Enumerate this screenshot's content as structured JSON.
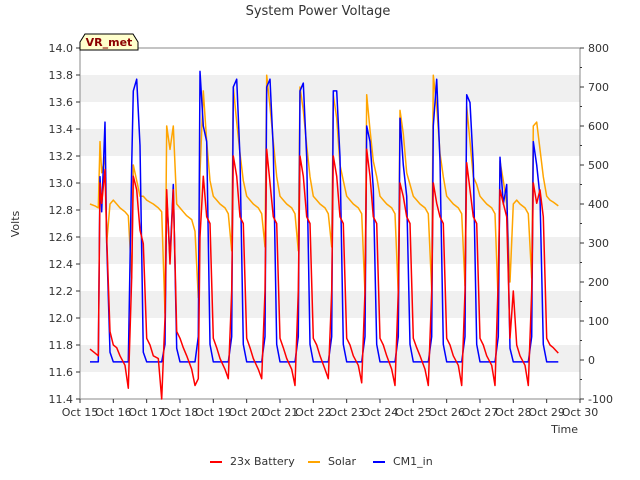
{
  "chart_data": {
    "type": "line",
    "title": "System Power Voltage",
    "xlabel": "Time",
    "ylabel": "Volts",
    "ylim": [
      11.4,
      14.0
    ],
    "y2lim": [
      -100,
      800
    ],
    "ytick_labels": [
      "11.4",
      "11.6",
      "11.8",
      "12.0",
      "12.2",
      "12.4",
      "12.6",
      "12.8",
      "13.0",
      "13.2",
      "13.4",
      "13.6",
      "13.8",
      "14.0"
    ],
    "y2tick_labels": [
      "-100",
      "0",
      "100",
      "200",
      "300",
      "400",
      "500",
      "600",
      "700",
      "800"
    ],
    "xtick_labels": [
      "Oct 15",
      "Oct 16",
      "Oct 17",
      "Oct 18",
      "Oct 19",
      "Oct 20",
      "Oct 21",
      "Oct 22",
      "Oct 23",
      "Oct 24",
      "Oct 25",
      "Oct 26",
      "Oct 27",
      "Oct 28",
      "Oct 29",
      "Oct 30"
    ],
    "xlim_days": [
      0,
      15
    ],
    "badge": "VR_met",
    "grid": "horizontal bands",
    "legend_position": "bottom-center",
    "series": [
      {
        "name": "23x Battery",
        "axis": "left",
        "color": "#ff0000",
        "x": [
          0.3,
          0.45,
          0.55,
          0.6,
          0.65,
          0.75,
          0.8,
          0.9,
          1.0,
          1.1,
          1.2,
          1.35,
          1.45,
          1.55,
          1.6,
          1.7,
          1.8,
          1.9,
          2.0,
          2.1,
          2.2,
          2.35,
          2.45,
          2.55,
          2.6,
          2.7,
          2.8,
          2.9,
          3.0,
          3.1,
          3.2,
          3.35,
          3.45,
          3.55,
          3.6,
          3.7,
          3.8,
          3.9,
          4.0,
          4.1,
          4.2,
          4.35,
          4.45,
          4.55,
          4.6,
          4.7,
          4.8,
          4.9,
          5.0,
          5.1,
          5.2,
          5.35,
          5.45,
          5.55,
          5.6,
          5.7,
          5.8,
          5.9,
          6.0,
          6.1,
          6.2,
          6.35,
          6.45,
          6.55,
          6.6,
          6.7,
          6.8,
          6.9,
          7.0,
          7.1,
          7.2,
          7.35,
          7.45,
          7.55,
          7.6,
          7.7,
          7.8,
          7.9,
          8.0,
          8.1,
          8.2,
          8.35,
          8.45,
          8.55,
          8.6,
          8.7,
          8.8,
          8.9,
          9.0,
          9.1,
          9.2,
          9.35,
          9.45,
          9.55,
          9.6,
          9.7,
          9.8,
          9.9,
          10.0,
          10.1,
          10.2,
          10.35,
          10.45,
          10.55,
          10.6,
          10.7,
          10.8,
          10.9,
          11.0,
          11.1,
          11.2,
          11.35,
          11.45,
          11.55,
          11.6,
          11.7,
          11.8,
          11.9,
          12.0,
          12.1,
          12.2,
          12.35,
          12.45,
          12.55,
          12.6,
          12.7,
          12.8,
          12.9,
          13.0,
          13.1,
          13.2,
          13.35,
          13.45,
          13.55,
          13.6,
          13.7,
          13.8,
          13.9,
          14.0,
          14.1,
          14.2,
          14.35
        ],
        "values": [
          11.77,
          11.74,
          11.72,
          13.0,
          12.85,
          13.1,
          12.6,
          11.9,
          11.8,
          11.78,
          11.72,
          11.65,
          11.48,
          12.3,
          13.05,
          12.95,
          12.65,
          12.55,
          11.85,
          11.8,
          11.72,
          11.7,
          11.4,
          12.0,
          12.95,
          12.4,
          12.95,
          11.9,
          11.85,
          11.78,
          11.72,
          11.62,
          11.5,
          11.55,
          12.6,
          13.05,
          12.75,
          12.7,
          11.85,
          11.78,
          11.7,
          11.62,
          11.55,
          12.2,
          13.2,
          13.05,
          12.75,
          12.7,
          11.85,
          11.78,
          11.7,
          11.62,
          11.55,
          12.2,
          13.25,
          13.0,
          12.75,
          12.7,
          11.85,
          11.78,
          11.7,
          11.62,
          11.5,
          12.2,
          13.2,
          13.05,
          12.75,
          12.7,
          11.85,
          11.8,
          11.72,
          11.62,
          11.55,
          12.2,
          13.2,
          13.05,
          12.75,
          12.7,
          11.85,
          11.8,
          11.72,
          11.65,
          11.52,
          12.2,
          13.25,
          13.05,
          12.75,
          12.7,
          11.85,
          11.8,
          11.72,
          11.62,
          11.5,
          12.2,
          13.0,
          12.9,
          12.75,
          12.7,
          11.85,
          11.78,
          11.72,
          11.62,
          11.5,
          12.2,
          13.0,
          12.85,
          12.75,
          12.7,
          11.85,
          11.8,
          11.72,
          11.65,
          11.5,
          12.2,
          13.15,
          12.95,
          12.75,
          12.7,
          11.85,
          11.8,
          11.72,
          11.65,
          11.5,
          12.3,
          12.95,
          12.85,
          12.75,
          11.85,
          12.2,
          11.8,
          11.72,
          11.65,
          11.5,
          12.2,
          13.0,
          12.85,
          12.95,
          12.75,
          11.85,
          11.8,
          11.78,
          11.74
        ]
      },
      {
        "name": "Solar",
        "axis": "right",
        "color": "#ffa500",
        "x": [
          0.3,
          0.45,
          0.55,
          0.6,
          0.65,
          0.75,
          0.8,
          0.9,
          1.0,
          1.1,
          1.2,
          1.35,
          1.45,
          1.55,
          1.6,
          1.7,
          1.8,
          1.9,
          2.0,
          2.1,
          2.2,
          2.35,
          2.45,
          2.55,
          2.6,
          2.7,
          2.8,
          2.9,
          3.0,
          3.1,
          3.2,
          3.35,
          3.45,
          3.55,
          3.6,
          3.7,
          3.8,
          3.9,
          4.0,
          4.1,
          4.2,
          4.35,
          4.45,
          4.55,
          4.6,
          4.7,
          4.8,
          4.9,
          5.0,
          5.1,
          5.2,
          5.35,
          5.45,
          5.55,
          5.6,
          5.7,
          5.8,
          5.9,
          6.0,
          6.1,
          6.2,
          6.35,
          6.45,
          6.55,
          6.6,
          6.7,
          6.8,
          6.9,
          7.0,
          7.1,
          7.2,
          7.35,
          7.45,
          7.55,
          7.6,
          7.7,
          7.8,
          7.9,
          8.0,
          8.1,
          8.2,
          8.35,
          8.45,
          8.55,
          8.6,
          8.7,
          8.8,
          8.9,
          9.0,
          9.1,
          9.2,
          9.35,
          9.45,
          9.55,
          9.6,
          9.7,
          9.8,
          9.9,
          10.0,
          10.1,
          10.2,
          10.35,
          10.45,
          10.55,
          10.6,
          10.7,
          10.8,
          10.9,
          11.0,
          11.1,
          11.2,
          11.35,
          11.45,
          11.55,
          11.6,
          11.7,
          11.8,
          11.9,
          12.0,
          12.1,
          12.2,
          12.35,
          12.45,
          12.55,
          12.6,
          12.7,
          12.8,
          12.9,
          13.0,
          13.1,
          13.2,
          13.35,
          13.45,
          13.55,
          13.6,
          13.7,
          13.8,
          13.9,
          14.0,
          14.1,
          14.2,
          14.35
        ],
        "values": [
          400,
          395,
          390,
          560,
          480,
          520,
          300,
          400,
          410,
          400,
          390,
          380,
          370,
          210,
          500,
          460,
          420,
          420,
          410,
          405,
          400,
          390,
          380,
          120,
          600,
          540,
          600,
          400,
          390,
          380,
          370,
          360,
          330,
          160,
          480,
          690,
          560,
          460,
          420,
          410,
          400,
          390,
          375,
          280,
          700,
          610,
          530,
          460,
          420,
          410,
          400,
          390,
          375,
          290,
          730,
          650,
          560,
          470,
          420,
          410,
          400,
          390,
          375,
          280,
          700,
          640,
          550,
          470,
          420,
          410,
          400,
          390,
          375,
          290,
          680,
          620,
          500,
          460,
          420,
          410,
          400,
          390,
          375,
          170,
          680,
          590,
          510,
          470,
          420,
          410,
          400,
          390,
          375,
          170,
          640,
          580,
          480,
          450,
          420,
          410,
          400,
          390,
          375,
          180,
          730,
          650,
          530,
          470,
          420,
          410,
          400,
          390,
          375,
          190,
          650,
          560,
          470,
          450,
          420,
          410,
          400,
          390,
          375,
          140,
          510,
          460,
          400,
          200,
          400,
          410,
          400,
          390,
          375,
          210,
          600,
          610,
          540,
          470,
          420,
          410,
          405,
          395
        ]
      },
      {
        "name": "CM1_in",
        "axis": "right",
        "color": "#0000ff",
        "x": [
          0.3,
          0.45,
          0.55,
          0.6,
          0.65,
          0.75,
          0.8,
          0.9,
          1.0,
          1.1,
          1.2,
          1.35,
          1.45,
          1.55,
          1.6,
          1.7,
          1.8,
          1.9,
          2.0,
          2.1,
          2.2,
          2.35,
          2.45,
          2.55,
          2.6,
          2.7,
          2.8,
          2.9,
          3.0,
          3.1,
          3.2,
          3.35,
          3.45,
          3.55,
          3.6,
          3.7,
          3.8,
          3.9,
          4.0,
          4.1,
          4.2,
          4.35,
          4.45,
          4.55,
          4.6,
          4.7,
          4.8,
          4.9,
          5.0,
          5.1,
          5.2,
          5.35,
          5.45,
          5.55,
          5.6,
          5.7,
          5.8,
          5.9,
          6.0,
          6.1,
          6.2,
          6.35,
          6.45,
          6.55,
          6.6,
          6.7,
          6.8,
          6.9,
          7.0,
          7.1,
          7.2,
          7.35,
          7.45,
          7.55,
          7.6,
          7.7,
          7.8,
          7.9,
          8.0,
          8.1,
          8.2,
          8.35,
          8.45,
          8.55,
          8.6,
          8.7,
          8.8,
          8.9,
          9.0,
          9.1,
          9.2,
          9.35,
          9.45,
          9.55,
          9.6,
          9.7,
          9.8,
          9.9,
          10.0,
          10.1,
          10.2,
          10.35,
          10.45,
          10.55,
          10.6,
          10.7,
          10.8,
          10.9,
          11.0,
          11.1,
          11.2,
          11.35,
          11.45,
          11.55,
          11.6,
          11.7,
          11.8,
          11.9,
          12.0,
          12.1,
          12.2,
          12.35,
          12.45,
          12.55,
          12.6,
          12.7,
          12.8,
          12.9,
          13.0,
          13.1,
          13.2,
          13.35,
          13.45,
          13.55,
          13.6,
          13.7,
          13.8,
          13.9,
          14.0,
          14.1,
          14.2,
          14.35
        ],
        "values": [
          -5,
          -5,
          -5,
          470,
          380,
          610,
          300,
          20,
          -5,
          -5,
          -5,
          -5,
          -5,
          500,
          690,
          720,
          550,
          20,
          -5,
          -5,
          -5,
          -5,
          -5,
          40,
          420,
          260,
          450,
          30,
          -5,
          -5,
          -5,
          -5,
          -5,
          60,
          740,
          600,
          560,
          40,
          -5,
          -5,
          -5,
          -5,
          -5,
          60,
          700,
          720,
          520,
          40,
          -5,
          -5,
          -5,
          -5,
          -5,
          60,
          700,
          720,
          540,
          40,
          -5,
          -5,
          -5,
          -5,
          -5,
          60,
          690,
          710,
          520,
          40,
          -5,
          -5,
          -5,
          -5,
          -5,
          60,
          690,
          690,
          520,
          40,
          -5,
          -5,
          -5,
          -5,
          -5,
          60,
          600,
          560,
          440,
          40,
          -5,
          -5,
          -5,
          -5,
          -5,
          60,
          620,
          500,
          420,
          40,
          -5,
          -5,
          -5,
          -5,
          -5,
          60,
          600,
          720,
          510,
          40,
          -5,
          -5,
          -5,
          -5,
          -5,
          60,
          680,
          660,
          500,
          40,
          -5,
          -5,
          -5,
          -5,
          -5,
          60,
          520,
          400,
          450,
          30,
          -5,
          -5,
          -5,
          -5,
          -5,
          60,
          560,
          500,
          420,
          40,
          -5,
          -5,
          -5,
          -5
        ]
      }
    ]
  }
}
